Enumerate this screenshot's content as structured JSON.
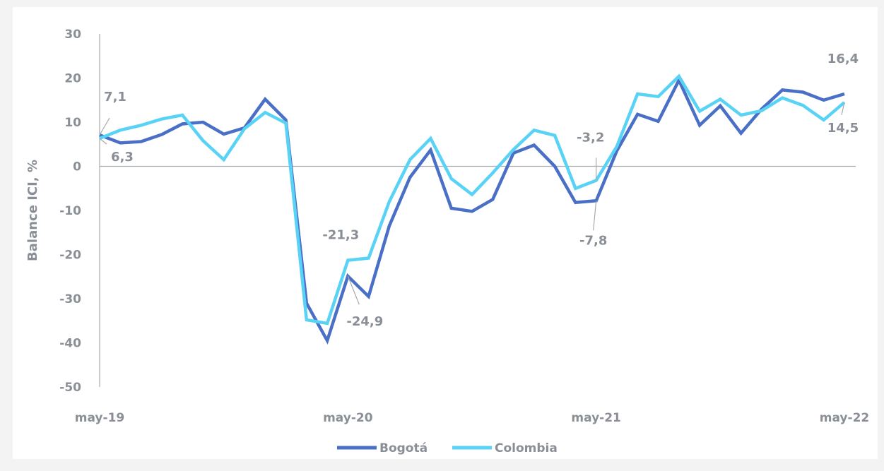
{
  "chart_data": {
    "type": "line",
    "ylabel": "Balance ICI, %",
    "xlabel": "",
    "ylim": [
      -50,
      30
    ],
    "yticks": [
      30,
      20,
      10,
      0,
      -10,
      -20,
      -30,
      -40,
      -50
    ],
    "x_tick_labels": [
      {
        "index": 0,
        "label": "may-19"
      },
      {
        "index": 12,
        "label": "may-20"
      },
      {
        "index": 24,
        "label": "may-21"
      },
      {
        "index": 36,
        "label": "may-22"
      }
    ],
    "legend_position": "bottom-center",
    "grid": false,
    "series": [
      {
        "name": "Bogotá",
        "color": "#4a6fc7",
        "values": [
          7.1,
          5.3,
          5.6,
          7.2,
          9.6,
          10.0,
          7.3,
          8.7,
          15.2,
          10.5,
          -31.0,
          -39.5,
          -24.9,
          -29.5,
          -13.5,
          -2.5,
          3.7,
          -9.5,
          -10.2,
          -7.5,
          3.0,
          4.8,
          0.0,
          -8.2,
          -7.8,
          3.5,
          11.8,
          10.2,
          19.5,
          9.3,
          13.7,
          7.5,
          13.0,
          17.3,
          16.8,
          15.0,
          16.4
        ]
      },
      {
        "name": "Colombia",
        "color": "#59d3f5",
        "values": [
          6.3,
          8.2,
          9.3,
          10.7,
          11.6,
          5.8,
          1.5,
          8.5,
          12.2,
          9.8,
          -34.8,
          -35.6,
          -21.3,
          -20.8,
          -8.0,
          1.5,
          6.3,
          -2.8,
          -6.4,
          -1.5,
          3.8,
          8.2,
          7.0,
          -5.0,
          -3.2,
          4.5,
          16.4,
          15.8,
          20.4,
          12.5,
          15.2,
          11.6,
          12.6,
          15.5,
          13.8,
          10.5,
          14.5
        ]
      }
    ],
    "annotations": [
      {
        "series": 0,
        "index": 0,
        "text": "7,1"
      },
      {
        "series": 1,
        "index": 0,
        "text": "6,3"
      },
      {
        "series": 1,
        "index": 12,
        "text": "-21,3"
      },
      {
        "series": 0,
        "index": 12,
        "text": "-24,9"
      },
      {
        "series": 1,
        "index": 24,
        "text": "-3,2"
      },
      {
        "series": 0,
        "index": 24,
        "text": "-7,8"
      },
      {
        "series": 0,
        "index": 36,
        "text": "16,4"
      },
      {
        "series": 1,
        "index": 36,
        "text": "14,5"
      }
    ]
  }
}
